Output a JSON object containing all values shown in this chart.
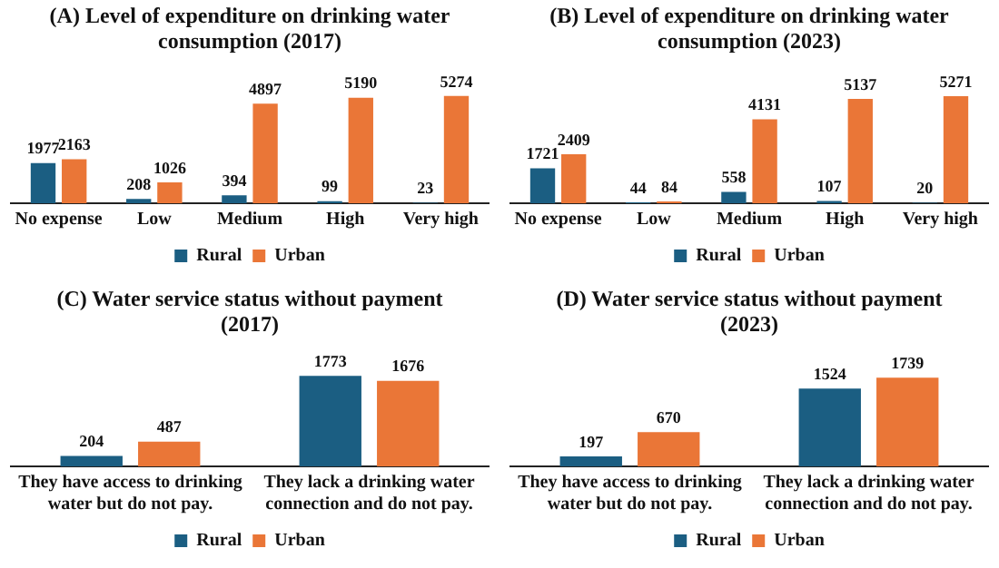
{
  "chart_data": [
    {
      "type": "bar",
      "title": "(A) Level of expenditure on drinking water consumption (2017)",
      "categories": [
        "No expense",
        "Low",
        "Medium",
        "High",
        "Very high"
      ],
      "series": [
        {
          "name": "Rural",
          "color": "#1b5e82",
          "values": [
            1977,
            208,
            394,
            99,
            23
          ]
        },
        {
          "name": "Urban",
          "color": "#ea7637",
          "values": [
            2163,
            1026,
            4897,
            5190,
            5274
          ]
        }
      ],
      "data_labels": true,
      "legend": "bottom",
      "grid": false,
      "tick_labels": "x"
    },
    {
      "type": "bar",
      "title": "(B) Level of expenditure on drinking water consumption (2023)",
      "categories": [
        "No expense",
        "Low",
        "Medium",
        "High",
        "Very high"
      ],
      "series": [
        {
          "name": "Rural",
          "color": "#1b5e82",
          "values": [
            1721,
            44,
            558,
            107,
            20
          ]
        },
        {
          "name": "Urban",
          "color": "#ea7637",
          "values": [
            2409,
            84,
            4131,
            5137,
            5271
          ]
        }
      ],
      "data_labels": true,
      "legend": "bottom",
      "grid": false,
      "tick_labels": "x"
    },
    {
      "type": "bar",
      "title": "(C) Water service status without payment (2017)",
      "categories": [
        "They have access to drinking water but do not pay.",
        "They lack a drinking water connection and do not pay."
      ],
      "series": [
        {
          "name": "Rural",
          "color": "#1b5e82",
          "values": [
            204,
            1773
          ]
        },
        {
          "name": "Urban",
          "color": "#ea7637",
          "values": [
            487,
            1676
          ]
        }
      ],
      "data_labels": true,
      "legend": "bottom",
      "grid": false,
      "tick_labels": "x"
    },
    {
      "type": "bar",
      "title": "(D) Water service status without payment (2023)",
      "categories": [
        "They have access to drinking water but do not pay.",
        "They lack a drinking water connection and do not pay."
      ],
      "series": [
        {
          "name": "Rural",
          "color": "#1b5e82",
          "values": [
            197,
            1524
          ]
        },
        {
          "name": "Urban",
          "color": "#ea7637",
          "values": [
            670,
            1739
          ]
        }
      ],
      "data_labels": true,
      "legend": "bottom",
      "grid": false,
      "tick_labels": "x"
    }
  ]
}
